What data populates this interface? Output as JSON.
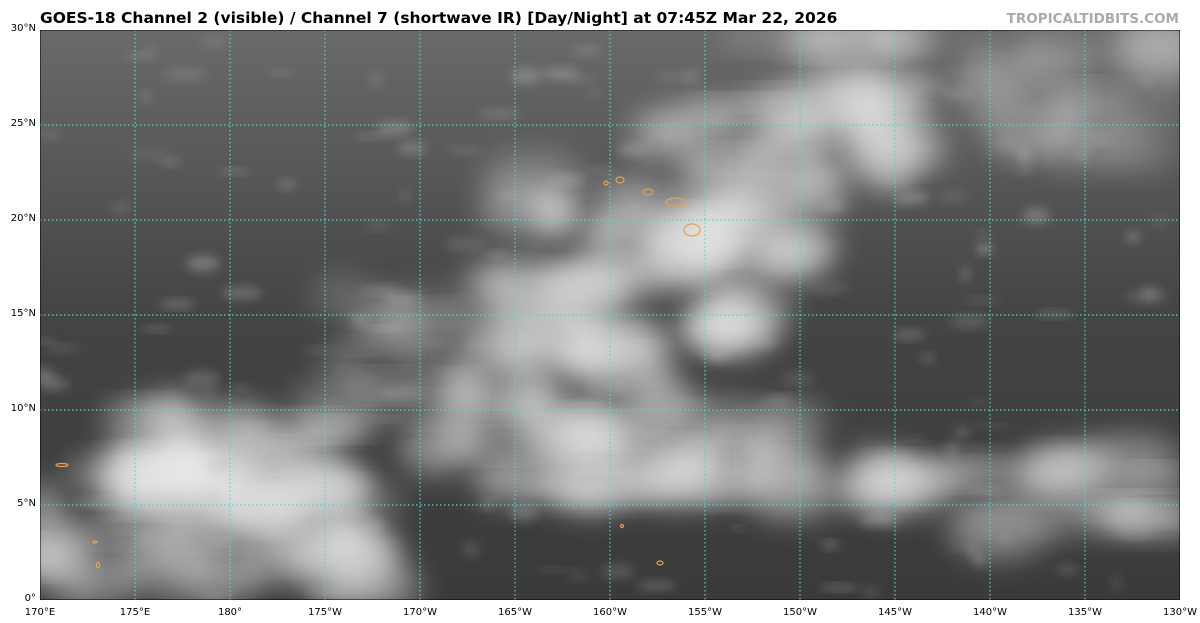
{
  "header": {
    "title": "GOES-18 Channel 2 (visible) / Channel 7 (shortwave IR) [Day/Night] at 07:45Z Mar 22, 2026",
    "credit": "TROPICALTIDBITS.COM"
  },
  "map": {
    "lon_range": [
      "170°E",
      "130°W"
    ],
    "lat_range": [
      "0°",
      "30°N"
    ],
    "lon_labels": [
      "170°E",
      "175°E",
      "180°",
      "175°W",
      "170°W",
      "165°W",
      "160°W",
      "155°W",
      "150°W",
      "145°W",
      "140°W",
      "135°W",
      "130°W"
    ],
    "lat_labels": [
      "0°",
      "5°N",
      "10°N",
      "15°N",
      "20°N",
      "25°N",
      "30°N"
    ],
    "grid_color": "#40e0d0",
    "coastline_color": "#e8a050",
    "background_color": "#4a4a4a"
  }
}
